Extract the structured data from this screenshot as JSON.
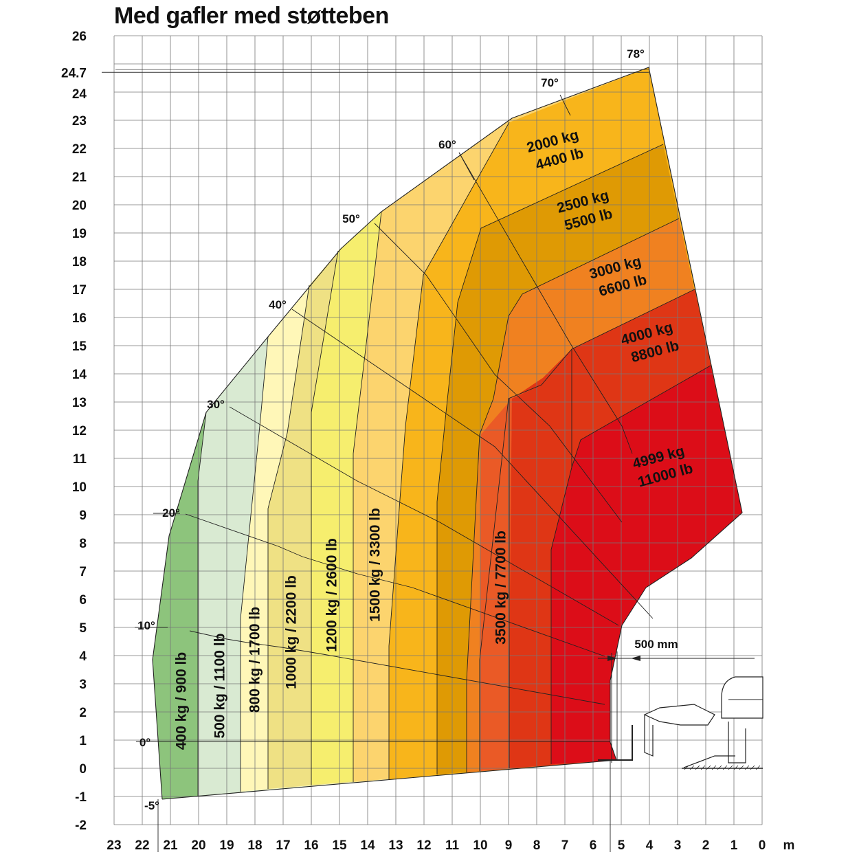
{
  "chart_data": {
    "type": "area",
    "title": "Med gafler med støtteben",
    "x_unit": "m",
    "xlim": [
      23,
      0
    ],
    "ylim": [
      -2,
      26
    ],
    "x_ticks": [
      "23",
      "22",
      "21",
      "20",
      "19",
      "18",
      "17",
      "16",
      "15",
      "14",
      "13",
      "12",
      "11",
      "10",
      "9",
      "8",
      "7",
      "6",
      "5",
      "4",
      "3",
      "2",
      "1",
      "0"
    ],
    "y_ticks": [
      "26",
      "24.7",
      "24",
      "23",
      "22",
      "21",
      "20",
      "19",
      "18",
      "17",
      "16",
      "15",
      "14",
      "13",
      "12",
      "11",
      "10",
      "9",
      "8",
      "7",
      "6",
      "5",
      "4",
      "3",
      "2",
      "1",
      "0",
      "-1",
      "-2"
    ],
    "boom_angles": [
      "78°",
      "70°",
      "60°",
      "50°",
      "40°",
      "30°",
      "20°",
      "10°",
      "0°",
      "-5°"
    ],
    "max_height": 24.7,
    "dimension_label": "500 mm",
    "colors": {
      "z400": "#8dc47c",
      "z500": "#d9ead2",
      "z800": "#fff7b8",
      "z1000": "#efe184",
      "z1200": "#f6ee6e",
      "z1500": "#fcd46e",
      "z2000": "#f8b51b",
      "z2500": "#df9a04",
      "z3000": "#f08120",
      "z3500": "#ea5a26",
      "z4000": "#df3615",
      "z4999": "#dc0d18",
      "grid": "#777777"
    },
    "load_zones": [
      {
        "label": "400 kg / 900 lb",
        "kg": 400,
        "lb": 900
      },
      {
        "label": "500 kg / 1100 lb",
        "kg": 500,
        "lb": 1100
      },
      {
        "label": "800 kg / 1700 lb",
        "kg": 800,
        "lb": 1700
      },
      {
        "label": "1000 kg / 2200 lb",
        "kg": 1000,
        "lb": 2200
      },
      {
        "label": "1200 kg / 2600 lb",
        "kg": 1200,
        "lb": 2600
      },
      {
        "label": "1500 kg / 3300 lb",
        "kg": 1500,
        "lb": 3300
      },
      {
        "label_kg": "2000 kg",
        "label_lb": "4400 lb",
        "kg": 2000,
        "lb": 4400
      },
      {
        "label_kg": "2500 kg",
        "label_lb": "5500 lb",
        "kg": 2500,
        "lb": 5500
      },
      {
        "label_kg": "3000 kg",
        "label_lb": "6600 lb",
        "kg": 3000,
        "lb": 6600
      },
      {
        "label": "3500 kg / 7700 lb",
        "kg": 3500,
        "lb": 7700
      },
      {
        "label_kg": "4000 kg",
        "label_lb": "8800 lb",
        "kg": 4000,
        "lb": 8800
      },
      {
        "label_kg": "4999 kg",
        "label_lb": "11000 lb",
        "kg": 4999,
        "lb": 11000
      }
    ]
  }
}
